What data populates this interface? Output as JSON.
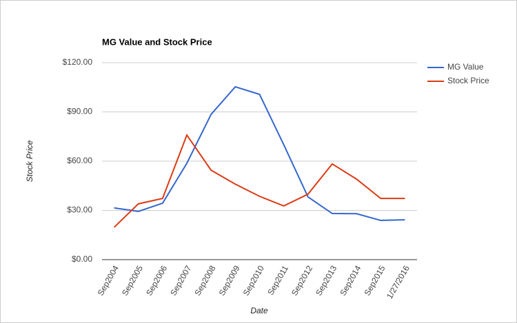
{
  "chart_data": {
    "type": "line",
    "title": "MG Value and Stock Price",
    "x_label": "Date",
    "y_label": "Stock Price",
    "categories": [
      "Sep2004",
      "Sep2005",
      "Sep2006",
      "Sep2007",
      "Sep2008",
      "Sep2009",
      "Sep2010",
      "Sep2011",
      "Sep2012",
      "Sep2013",
      "Sep2014",
      "Sep2015",
      "1/27/2016"
    ],
    "series": [
      {
        "name": "MG Value",
        "color": "#3366cc",
        "values": [
          31.5,
          29.4,
          34.4,
          58.7,
          88.5,
          105.3,
          100.7,
          70,
          38.2,
          28.1,
          28,
          23.9,
          24.3
        ]
      },
      {
        "name": "Stock Price",
        "color": "#dc3912",
        "values": [
          19.7,
          34,
          37.3,
          75.9,
          54.5,
          46,
          38.6,
          32.7,
          39.9,
          58.3,
          49.1,
          37.3,
          37.3
        ]
      }
    ],
    "ylim": [
      0,
      120
    ],
    "yticks": [
      {
        "value": 0,
        "label": "$0.00"
      },
      {
        "value": 30,
        "label": "$30.00"
      },
      {
        "value": 60,
        "label": "$60.00"
      },
      {
        "value": 90,
        "label": "$90.00"
      },
      {
        "value": 120,
        "label": "$120.00"
      }
    ],
    "grid": true,
    "legend": "right"
  }
}
